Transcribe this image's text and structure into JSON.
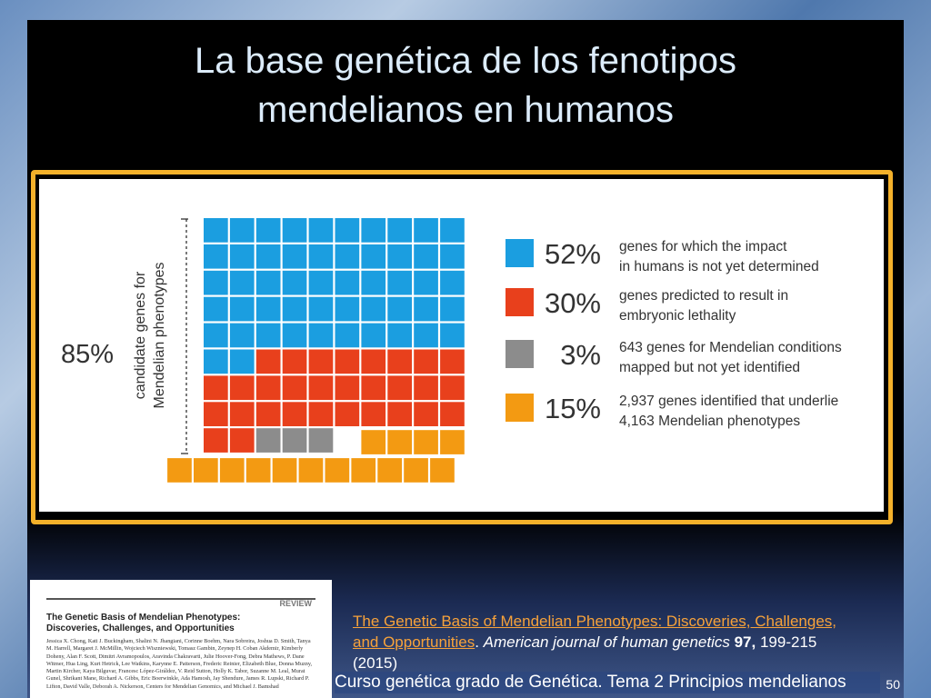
{
  "slide": {
    "title_line1": "La base genética de los fenotipos",
    "title_line2": "mendelianos en humanos",
    "footer": "Curso genética grado de Genética. Tema 2 Principios mendelianos",
    "page_number": "50"
  },
  "citation": {
    "link_text": "The Genetic Basis of Mendelian Phenotypes: Discoveries, Challenges, and Opportunities",
    "journal": "American journal of human genetics",
    "volume": "97,",
    "pages_year": "199-215 (2015)"
  },
  "paper_thumbnail": {
    "label": "REVIEW",
    "title_line1": "The Genetic Basis of Mendelian Phenotypes:",
    "title_line2": "Discoveries, Challenges, and Opportunities",
    "authors": "Jessica X. Chong, Kati J. Buckingham, Shalini N. Jhangiani, Corinne Boehm, Nara Sobreira, Joshua D. Smith, Tanya M. Harrell, Margaret J. McMillin, Wojciech Wiszniewski, Tomasz Gambin, Zeynep H. Coban Akdemir, Kimberly Doheny, Alan F. Scott, Dimitri Avramopoulos, Aravinda Chakravarti, Julie Hoover-Fong, Debra Mathews, P. Dane Witmer, Hua Ling, Kurt Hetrick, Lee Watkins, Karynne E. Patterson, Frederic Reinier, Elizabeth Blue, Donna Muzny, Martin Kircher, Kaya Bilguvar, Francesc López-Giráldez, V. Reid Sutton, Holly K. Tabor, Suzanne M. Leal, Murat Gunel, Shrikant Mane, Richard A. Gibbs, Eric Boerwinkle, Ada Hamosh, Jay Shendure, James R. Lupski, Richard P. Lifton, David Valle, Deborah A. Nickerson, Centers for Mendelian Genomics, and Michael J. Bamshad"
  },
  "chart_data": {
    "type": "waffle",
    "total_cells": 100,
    "bracket_label": "85%",
    "bracket_axis_label_line1": "candidate genes for",
    "bracket_axis_label_line2": "Mendelian phenotypes",
    "series": [
      {
        "name": "52%",
        "value": 52,
        "color": "#1b9ee0",
        "description_line1": "genes for which the impact",
        "description_line2": "in humans is not yet determined"
      },
      {
        "name": "30%",
        "value": 30,
        "color": "#e8401c",
        "description_line1": "genes predicted to result in",
        "description_line2": "embryonic lethality"
      },
      {
        "name": "3%",
        "value": 3,
        "color": "#8c8c8c",
        "description_line1": "643 genes for Mendelian conditions",
        "description_line2": "mapped but not yet identified"
      },
      {
        "name": "15%",
        "value": 15,
        "color": "#f39a12",
        "description_line1": "2,937 genes identified that underlie",
        "description_line2": "4,163 Mendelian phenotypes"
      }
    ]
  }
}
